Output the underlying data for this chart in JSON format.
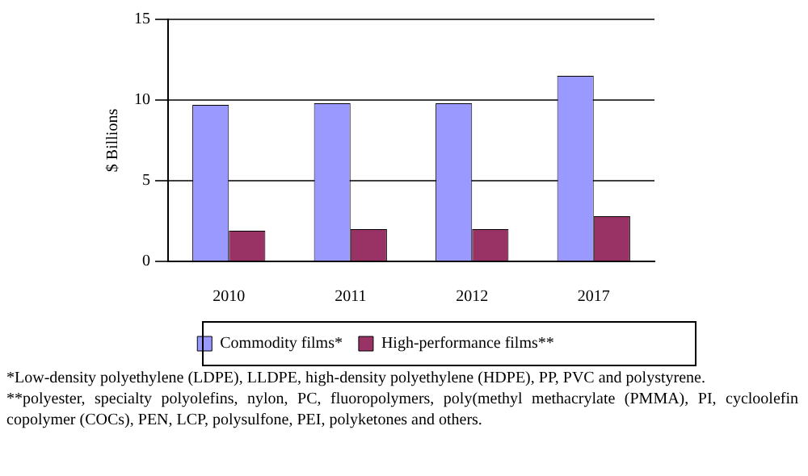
{
  "chart_data": {
    "type": "bar",
    "ylabel": "$ Billions",
    "categories": [
      "2010",
      "2011",
      "2012",
      "2017"
    ],
    "series": [
      {
        "name": "Commodity films*",
        "color": "#9999ff",
        "values": [
          9.7,
          9.8,
          9.8,
          11.5
        ]
      },
      {
        "name": "High-performance films**",
        "color": "#993366",
        "values": [
          1.9,
          2.0,
          2.0,
          2.8
        ]
      }
    ],
    "ylim": [
      0,
      15
    ],
    "yticks": [
      0,
      5,
      10,
      15
    ],
    "grid": "y",
    "legend": "bottom",
    "annotations": [
      "*Low-density polyethylene (LDPE), LLDPE, high-density polyethylene (HDPE), PP, PVC and polystyrene.",
      "**polyester, specialty polyolefins, nylon, PC, fluoropolymers, poly(methyl methacrylate (PMMA), PI, cycloolefin copolymer (COCs), PEN, LCP, polysulfone, PEI, polyketones and others."
    ]
  }
}
